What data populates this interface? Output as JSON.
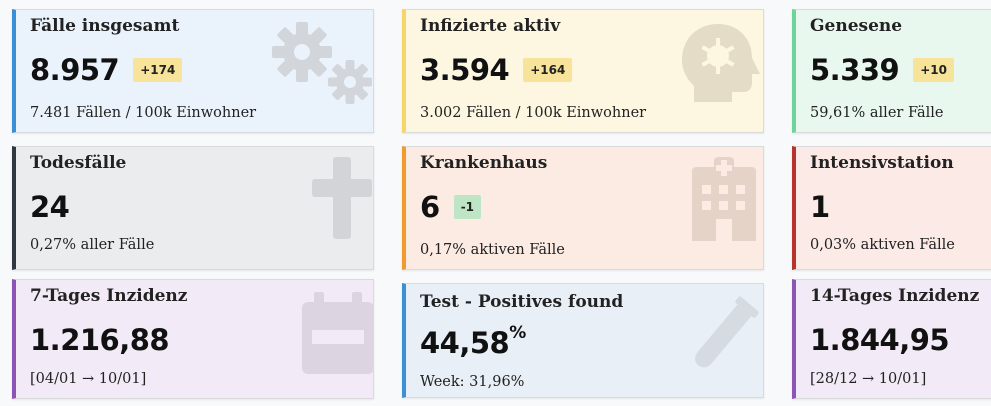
{
  "colors": {
    "blue_accent": "#3a8fd6",
    "yellow_accent": "#f5d667",
    "green_accent": "#6fd39a",
    "dark_accent": "#2f3740",
    "orange_accent": "#f29a2e",
    "red_accent": "#b8332b",
    "purple_accent": "#8e54b5"
  },
  "cards": {
    "faelle": {
      "title": "Fälle insgesamt",
      "value": "8.957",
      "badge": "+174",
      "sub": "7.481 Fällen / 100k Einwohner",
      "icon": "cogs-icon"
    },
    "infizierte": {
      "title": "Infizierte aktiv",
      "value": "3.594",
      "badge": "+164",
      "sub": "3.002 Fällen / 100k Einwohner",
      "icon": "virus-head-icon"
    },
    "genesene": {
      "title": "Genesene",
      "value": "5.339",
      "badge": "+10",
      "sub": "59,61% aller Fälle"
    },
    "todesfaelle": {
      "title": "Todesfälle",
      "value": "24",
      "sub": "0,27% aller Fälle",
      "icon": "cross-icon"
    },
    "krankenhaus": {
      "title": "Krankenhaus",
      "value": "6",
      "badge": "-1",
      "sub": "0,17% aktiven Fälle",
      "icon": "hospital-icon"
    },
    "intensiv": {
      "title": "Intensivstation",
      "value": "1",
      "sub": "0,03% aktiven Fälle"
    },
    "inzidenz7": {
      "title": "7-Tages Inzidenz",
      "value": "1.216,88",
      "sub": "[04/01 → 10/01]",
      "icon": "calendar-icon"
    },
    "test": {
      "title": "Test - Positives found",
      "value": "44,58",
      "value_unit": "%",
      "sub": "Week: 31,96%",
      "icon": "test-tube-icon"
    },
    "inzidenz14": {
      "title": "14-Tages Inzidenz",
      "value": "1.844,95",
      "sub": "[28/12 → 10/01]"
    }
  }
}
